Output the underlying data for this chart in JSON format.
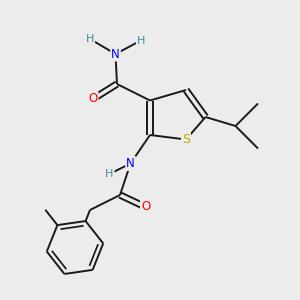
{
  "background_color": "#ececec",
  "atom_colors": {
    "C": "#1a1a1a",
    "H": "#3a9090",
    "N": "#0000ff",
    "O": "#ff0000",
    "S": "#c8a800"
  },
  "figsize": [
    3.0,
    3.0
  ],
  "dpi": 100,
  "lw": 1.4,
  "fs": 8.5
}
